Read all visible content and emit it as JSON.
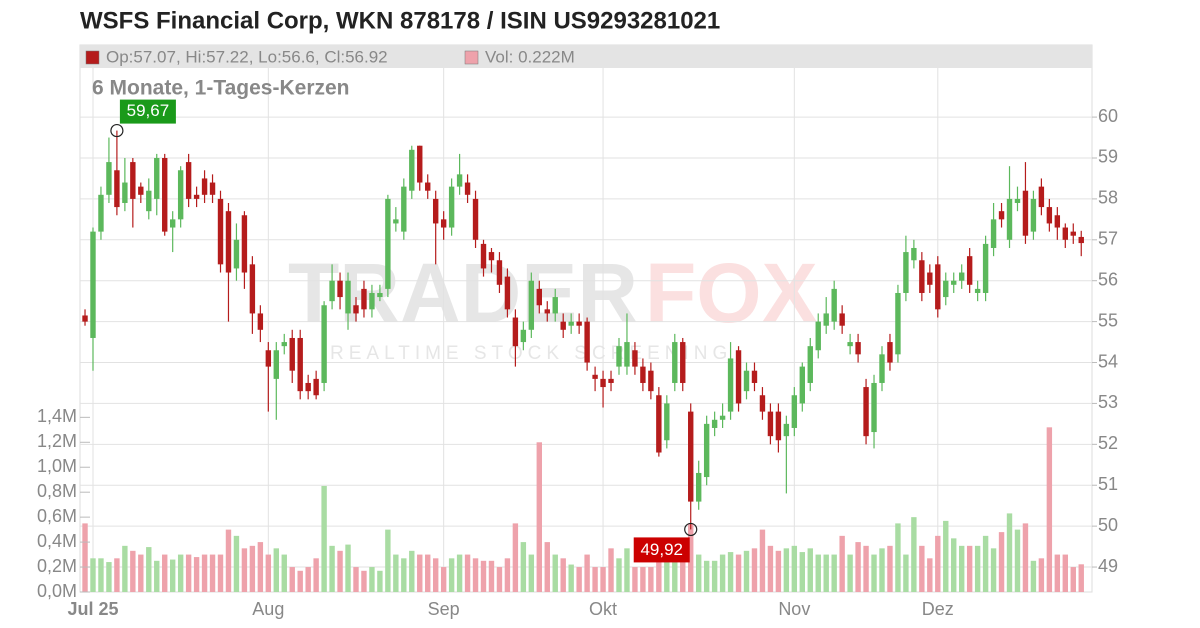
{
  "chart_data": {
    "type": "candlestick",
    "title": "WSFS Financial Corp, WKN 878178 / ISIN US9293281021",
    "subtitle": "6 Monate, 1-Tages-Kerzen",
    "legend": [
      {
        "label": "Op:57.07, Hi:57.22, Lo:56.6, Cl:56.92",
        "color": "#b51c1c"
      },
      {
        "label": "Vol: 0.222M",
        "color": "#eea2ab"
      }
    ],
    "watermark": [
      "TRADER",
      "FOX",
      "REALTIME STOCK SCREENING"
    ],
    "extremes": {
      "high_label": "59,67",
      "low_label": "49,92"
    },
    "up_color": "#5cb85c",
    "down_color": "#b51c1c",
    "volume_up_color": "#a9dca3",
    "volume_down_color": "#eea2ab",
    "grid": true,
    "xlim": [
      -0.63,
      126.35
    ],
    "xticks": [
      {
        "value": 1,
        "label": "Jul 25"
      },
      {
        "value": 23,
        "label": "Aug"
      },
      {
        "value": 45,
        "label": "Sep"
      },
      {
        "value": 65,
        "label": "Okt"
      },
      {
        "value": 89,
        "label": "Nov"
      },
      {
        "value": 107,
        "label": "Dez"
      }
    ],
    "ylim": [
      48.39,
      61.2
    ],
    "yticks": [
      49,
      50,
      51,
      52,
      53,
      54,
      55,
      56,
      57,
      58,
      59,
      60
    ],
    "y2lim": [
      0,
      4200000
    ],
    "y2ticks": [
      {
        "value": 0,
        "label": "0,0M"
      },
      {
        "value": 200000,
        "label": "0,2M"
      },
      {
        "value": 400000,
        "label": "0,4M"
      },
      {
        "value": 600000,
        "label": "0,6M"
      },
      {
        "value": 800000,
        "label": "0,8M"
      },
      {
        "value": 1000000,
        "label": "1,0M"
      },
      {
        "value": 1200000,
        "label": "1,2M"
      },
      {
        "value": 1400000,
        "label": "1,4M"
      }
    ],
    "open": [
      55.15,
      54.6,
      57.2,
      58.1,
      58.7,
      57.9,
      58.9,
      58.3,
      57.7,
      58.0,
      59.0,
      57.3,
      57.5,
      58.9,
      58.1,
      58.5,
      58.4,
      58.0,
      57.7,
      56.3,
      57.6,
      56.4,
      55.2,
      54.3,
      53.6,
      54.4,
      54.6,
      54.6,
      53.5,
      53.6,
      53.5,
      55.5,
      56.0,
      55.2,
      55.4,
      55.8,
      55.3,
      55.6,
      55.8,
      57.4,
      57.2,
      58.2,
      59.3,
      58.4,
      58.0,
      57.5,
      57.3,
      58.3,
      58.4,
      58.0,
      56.9,
      56.7,
      56.5,
      56.1,
      55.1,
      54.5,
      54.8,
      55.8,
      55.3,
      55.2,
      55.0,
      54.9,
      55.0,
      55.0,
      53.7,
      53.6,
      53.6,
      53.9,
      53.9,
      54.3,
      53.9,
      53.8,
      53.2,
      52.1,
      53.5,
      54.5,
      52.8,
      50.6,
      51.2,
      52.4,
      52.6,
      52.8,
      54.3,
      53.3,
      53.8,
      53.2,
      52.8,
      52.8,
      52.2,
      52.4,
      53.0,
      53.5,
      54.3,
      54.9,
      55.0,
      55.2,
      54.4,
      54.5,
      53.4,
      52.3,
      53.5,
      54.5,
      54.2,
      55.7,
      56.5,
      56.5,
      56.2,
      56.4,
      55.6,
      55.9,
      56.0,
      56.6,
      55.7,
      55.7,
      56.8,
      57.7,
      57.0,
      57.9,
      58.2,
      57.2,
      58.3,
      57.8,
      57.6,
      57.3,
      57.2,
      57.07
    ],
    "high": [
      55.3,
      57.3,
      58.3,
      59.5,
      59.67,
      59.0,
      59.0,
      58.4,
      58.5,
      59.1,
      59.1,
      57.7,
      58.8,
      59.1,
      58.3,
      58.7,
      58.6,
      58.2,
      57.9,
      57.4,
      57.7,
      56.6,
      55.4,
      54.5,
      54.5,
      54.7,
      54.8,
      54.8,
      53.7,
      53.8,
      55.5,
      56.4,
      56.2,
      56.2,
      55.6,
      56.0,
      55.9,
      55.9,
      58.1,
      57.8,
      58.5,
      59.3,
      59.3,
      58.6,
      58.2,
      57.7,
      58.5,
      59.1,
      58.6,
      58.2,
      57.0,
      56.8,
      56.7,
      56.3,
      55.3,
      55.0,
      56.2,
      56.0,
      55.5,
      55.8,
      55.2,
      55.2,
      55.2,
      55.1,
      53.9,
      53.8,
      53.8,
      54.6,
      55.2,
      54.5,
      54.1,
      54.0,
      53.4,
      53.2,
      54.7,
      54.6,
      53.0,
      51.6,
      52.7,
      52.8,
      53.0,
      54.5,
      54.4,
      54.0,
      54.0,
      53.4,
      53.0,
      53.0,
      52.7,
      53.4,
      54.0,
      54.6,
      55.2,
      55.6,
      56.0,
      55.4,
      54.7,
      54.7,
      53.6,
      53.7,
      54.4,
      54.7,
      55.9,
      57.1,
      57.0,
      56.7,
      56.4,
      56.6,
      56.2,
      56.2,
      56.4,
      56.8,
      56.0,
      57.1,
      57.9,
      57.9,
      58.8,
      58.3,
      58.9,
      58.2,
      58.5,
      58.0,
      57.8,
      57.4,
      57.4,
      57.22
    ],
    "low": [
      54.9,
      53.8,
      57.0,
      57.9,
      57.6,
      57.7,
      57.3,
      57.9,
      57.5,
      57.6,
      57.1,
      56.7,
      57.3,
      57.8,
      57.8,
      57.9,
      57.9,
      56.2,
      55.0,
      56.0,
      55.8,
      54.7,
      54.5,
      52.8,
      52.6,
      54.2,
      53.5,
      53.1,
      53.1,
      53.1,
      53.3,
      55.3,
      55.3,
      54.8,
      55.0,
      55.1,
      55.1,
      55.5,
      55.6,
      57.2,
      57.0,
      58.0,
      58.2,
      58.0,
      56.4,
      57.0,
      57.1,
      58.1,
      57.9,
      56.8,
      56.1,
      56.2,
      55.7,
      55.1,
      53.9,
      54.3,
      54.6,
      55.2,
      55.0,
      55.0,
      54.6,
      54.7,
      54.7,
      53.8,
      53.3,
      52.9,
      53.3,
      53.7,
      53.7,
      53.7,
      53.3,
      53.1,
      51.7,
      51.9,
      53.3,
      53.3,
      49.92,
      50.4,
      51.0,
      52.2,
      52.4,
      52.6,
      52.8,
      53.1,
      53.3,
      52.6,
      52.0,
      51.8,
      50.8,
      52.2,
      52.8,
      53.3,
      54.1,
      54.7,
      54.8,
      54.7,
      54.2,
      54.0,
      52.0,
      51.9,
      53.3,
      53.8,
      54.0,
      55.5,
      56.3,
      55.5,
      55.7,
      55.1,
      55.4,
      55.7,
      55.8,
      55.7,
      55.5,
      55.5,
      56.6,
      57.3,
      56.8,
      57.7,
      56.9,
      57.0,
      57.6,
      57.2,
      57.0,
      56.8,
      56.9,
      56.6
    ],
    "close": [
      55.0,
      57.2,
      58.1,
      58.9,
      57.8,
      58.4,
      58.0,
      58.1,
      58.2,
      59.0,
      57.2,
      57.5,
      58.7,
      58.0,
      58.0,
      58.1,
      58.1,
      56.4,
      56.2,
      57.0,
      56.2,
      55.2,
      54.8,
      53.9,
      54.3,
      54.5,
      53.8,
      53.3,
      53.3,
      53.2,
      55.4,
      56.0,
      55.6,
      56.0,
      55.2,
      55.3,
      55.7,
      55.7,
      58.0,
      57.5,
      58.3,
      59.2,
      58.4,
      58.2,
      57.4,
      57.3,
      58.3,
      58.6,
      58.1,
      57.0,
      56.3,
      56.5,
      55.9,
      55.3,
      54.4,
      54.8,
      56.0,
      55.4,
      55.2,
      55.6,
      54.8,
      55.0,
      54.9,
      54.0,
      53.6,
      53.4,
      53.5,
      54.4,
      54.5,
      53.9,
      53.5,
      53.3,
      51.8,
      53.0,
      54.5,
      53.5,
      50.6,
      51.3,
      52.5,
      52.6,
      52.7,
      54.1,
      53.0,
      53.8,
      53.5,
      52.8,
      52.2,
      52.1,
      52.5,
      53.2,
      53.9,
      54.4,
      55.0,
      55.2,
      55.8,
      54.9,
      54.5,
      54.2,
      52.2,
      53.5,
      54.2,
      54.0,
      55.7,
      56.7,
      56.8,
      55.7,
      55.9,
      55.3,
      56.0,
      56.0,
      56.2,
      55.9,
      55.8,
      56.9,
      57.5,
      57.5,
      58.0,
      58.0,
      57.1,
      58.0,
      57.8,
      57.4,
      57.3,
      57.0,
      57.1,
      56.92
    ],
    "volume": [
      550000,
      270000,
      270000,
      240000,
      270000,
      370000,
      330000,
      300000,
      360000,
      250000,
      300000,
      260000,
      300000,
      300000,
      280000,
      300000,
      300000,
      300000,
      500000,
      450000,
      350000,
      370000,
      400000,
      300000,
      350000,
      300000,
      200000,
      170000,
      200000,
      270000,
      850000,
      370000,
      330000,
      380000,
      200000,
      170000,
      200000,
      170000,
      500000,
      300000,
      270000,
      330000,
      300000,
      300000,
      270000,
      200000,
      270000,
      300000,
      300000,
      270000,
      250000,
      250000,
      200000,
      270000,
      550000,
      400000,
      300000,
      1200000,
      400000,
      300000,
      270000,
      220000,
      200000,
      300000,
      200000,
      200000,
      350000,
      270000,
      350000,
      200000,
      200000,
      200000,
      250000,
      300000,
      350000,
      350000,
      550000,
      300000,
      250000,
      250000,
      300000,
      320000,
      300000,
      330000,
      350000,
      500000,
      370000,
      330000,
      350000,
      370000,
      320000,
      350000,
      300000,
      300000,
      300000,
      450000,
      300000,
      400000,
      370000,
      300000,
      350000,
      370000,
      550000,
      300000,
      600000,
      370000,
      270000,
      450000,
      570000,
      430000,
      370000,
      370000,
      370000,
      450000,
      350000,
      480000,
      630000,
      500000,
      550000,
      250000,
      270000,
      1320000,
      300000,
      300000,
      200000,
      222000
    ]
  }
}
